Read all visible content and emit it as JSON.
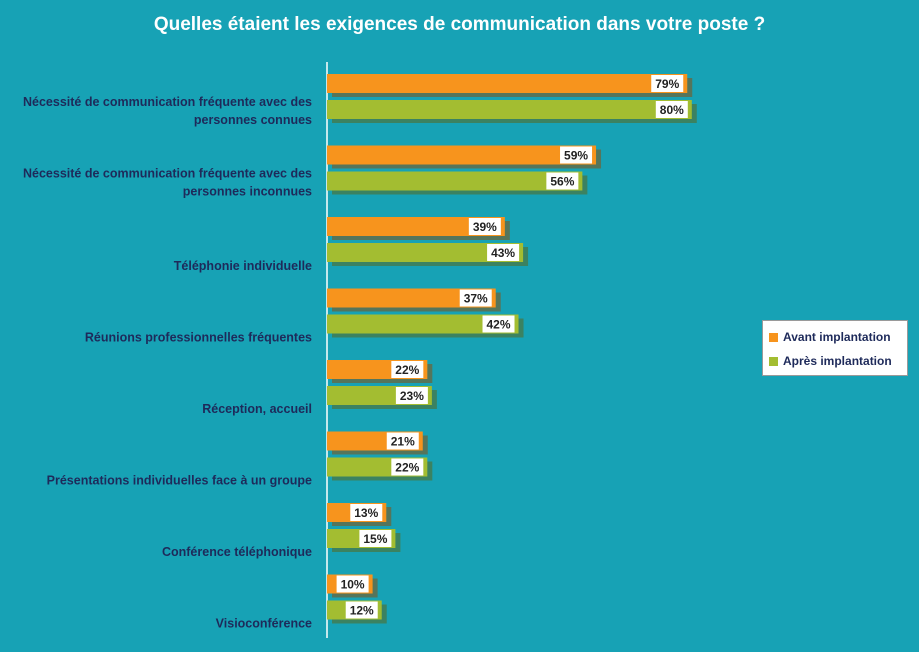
{
  "chart_data": {
    "type": "bar",
    "orientation": "horizontal",
    "title": "Quelles étaient les exigences de communication dans votre poste ?",
    "categories": [
      [
        "Nécessité de communication fréquente avec des",
        "personnes connues"
      ],
      [
        "Nécessité de communication fréquente avec des",
        "personnes inconnues"
      ],
      [
        "Téléphonie individuelle"
      ],
      [
        "Réunions professionnelles fréquentes"
      ],
      [
        "Réception, accueil"
      ],
      [
        "Présentations individuelles face à un groupe"
      ],
      [
        "Conférence téléphonique"
      ],
      [
        "Visioconférence"
      ]
    ],
    "series": [
      {
        "name": "Avant implantation",
        "color": "#f7941d",
        "values": [
          79,
          59,
          39,
          37,
          22,
          21,
          13,
          10
        ],
        "labels": [
          "79%",
          "59%",
          "39%",
          "37%",
          "22%",
          "21%",
          "13%",
          "10%"
        ]
      },
      {
        "name": "Après implantation",
        "color": "#a3bd31",
        "values": [
          80,
          56,
          43,
          42,
          23,
          22,
          15,
          12
        ],
        "labels": [
          "80%",
          "56%",
          "43%",
          "42%",
          "23%",
          "22%",
          "15%",
          "12%"
        ]
      }
    ],
    "xlim": [
      0,
      100
    ],
    "grid": false,
    "legend_position": "right"
  }
}
